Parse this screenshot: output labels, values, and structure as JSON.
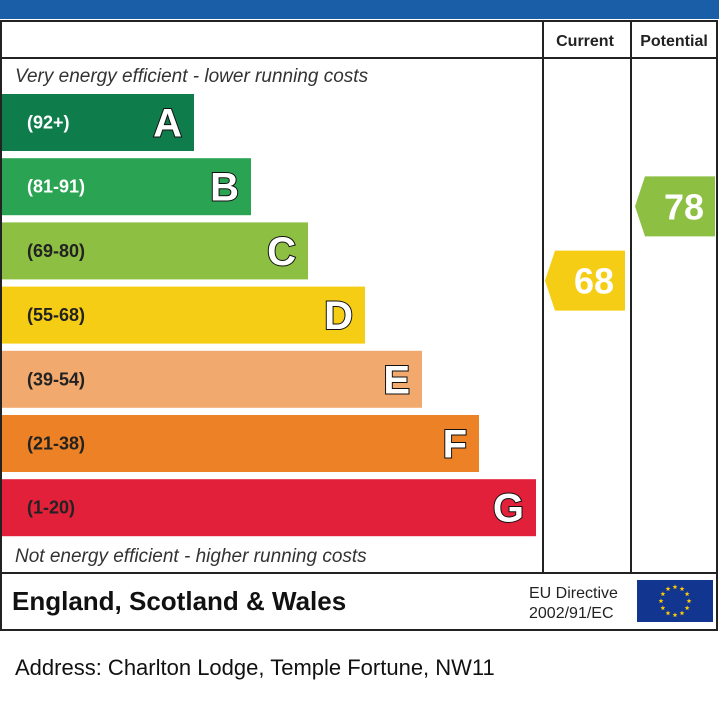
{
  "chart_data": {
    "type": "bar",
    "title": "",
    "columns": {
      "current": "Current",
      "potential": "Potential"
    },
    "top_note": "Very energy efficient - lower running costs",
    "bottom_note": "Not energy efficient - higher running costs",
    "bands": [
      {
        "letter": "A",
        "range": "(92+)",
        "min": 92,
        "max": 100,
        "color": "#0f7d4b",
        "range_color": "#ffffff"
      },
      {
        "letter": "B",
        "range": "(81-91)",
        "min": 81,
        "max": 91,
        "color": "#2aa453",
        "range_color": "#ffffff"
      },
      {
        "letter": "C",
        "range": "(69-80)",
        "min": 69,
        "max": 80,
        "color": "#8dbf43",
        "range_color": "#222222"
      },
      {
        "letter": "D",
        "range": "(55-68)",
        "min": 55,
        "max": 68,
        "color": "#f6cd15",
        "range_color": "#222222"
      },
      {
        "letter": "E",
        "range": "(39-54)",
        "min": 39,
        "max": 54,
        "color": "#f2a96e",
        "range_color": "#222222"
      },
      {
        "letter": "F",
        "range": "(21-38)",
        "min": 21,
        "max": 38,
        "color": "#ec8125",
        "range_color": "#222222"
      },
      {
        "letter": "G",
        "range": "(1-20)",
        "min": 1,
        "max": 20,
        "color": "#e2203a",
        "range_color": "#222222"
      }
    ],
    "current": {
      "value": "68",
      "band": "D",
      "color": "#f6cd15"
    },
    "potential": {
      "value": "78",
      "band": "C",
      "color": "#8dbf43"
    },
    "footer": {
      "region": "England, Scotland & Wales",
      "directive_line1": "EU Directive",
      "directive_line2": "2002/91/EC"
    },
    "header_color": "#1a5ea8"
  },
  "address": "Address: Charlton Lodge, Temple Fortune, NW11"
}
